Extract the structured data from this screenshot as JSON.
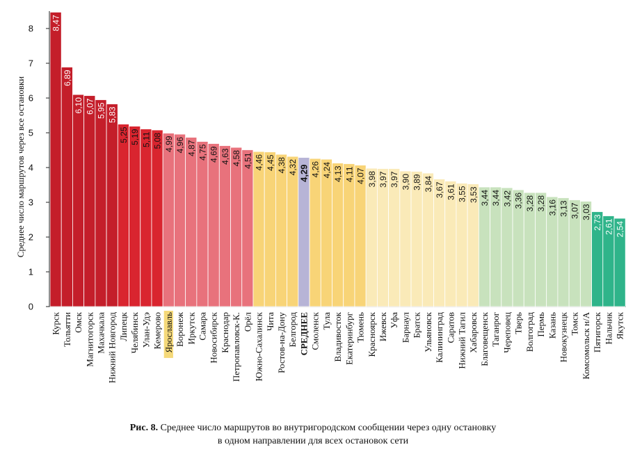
{
  "caption": {
    "label": "Рис.  8.",
    "line1": "Среднее число маршрутов во внутригородском сообщении через одну остановку",
    "line2": "в одном направлении для всех остановок сети"
  },
  "chart_data": {
    "type": "bar",
    "title": "",
    "xlabel": "",
    "ylabel": "Среднее число маршрутов через все остановки",
    "ylim": [
      0,
      8.5
    ],
    "yticks": [
      0,
      1,
      2,
      3,
      4,
      5,
      6,
      7,
      8
    ],
    "grid": false,
    "legend": "none",
    "categories": [
      "Курск",
      "Тольятти",
      "Омск",
      "Магнитогорск",
      "Махачкала",
      "Нижний Новгород",
      "Липецк",
      "Челябинск",
      "Улан-Удэ",
      "Кемерово",
      "Ярославль",
      "Воронеж",
      "Иркутск",
      "Самара",
      "Новосибирск",
      "Краснодар",
      "Петропавловск-К.",
      "Орёл",
      "Южно-Сахалинск",
      "Чита",
      "Ростов-на-Дону",
      "Белгород",
      "СРЕДНЕЕ",
      "Смоленск",
      "Тула",
      "Владивосток",
      "Екатеринбург",
      "Тюмень",
      "Красноярск",
      "Ижевск",
      "Уфа",
      "Барнаул",
      "Братск",
      "Ульяновск",
      "Калининград",
      "Саратов",
      "Нижний Тагил",
      "Хабаровск",
      "Благовещенск",
      "Таганрог",
      "Череповец",
      "Тверь",
      "Волгоград",
      "Пермь",
      "Казань",
      "Новокузнецк",
      "Томск",
      "Комсомольск н/А",
      "Пятигорск",
      "Нальчик",
      "Якутск"
    ],
    "values": [
      8.47,
      6.89,
      6.1,
      6.07,
      5.95,
      5.83,
      5.25,
      5.19,
      5.11,
      5.08,
      4.99,
      4.96,
      4.87,
      4.75,
      4.69,
      4.63,
      4.58,
      4.51,
      4.46,
      4.45,
      4.38,
      4.32,
      4.29,
      4.26,
      4.24,
      4.13,
      4.11,
      4.07,
      3.98,
      3.97,
      3.97,
      3.9,
      3.89,
      3.84,
      3.67,
      3.61,
      3.55,
      3.53,
      3.44,
      3.44,
      3.42,
      3.36,
      3.28,
      3.28,
      3.16,
      3.13,
      3.07,
      3.03,
      2.73,
      2.61,
      2.54
    ],
    "value_labels": [
      "8,47",
      "6,89",
      "6,10",
      "6,07",
      "5,95",
      "5,83",
      "5,25",
      "5,19",
      "5,11",
      "5,08",
      "4,99",
      "4,96",
      "4,87",
      "4,75",
      "4,69",
      "4,63",
      "4,58",
      "4,51",
      "4,46",
      "4,45",
      "4,38",
      "4,32",
      "4,29",
      "4,26",
      "4,24",
      "4,13",
      "4,11",
      "4,07",
      "3,98",
      "3,97",
      "3,97",
      "3,90",
      "3,89",
      "3,84",
      "3,67",
      "3,61",
      "3,55",
      "3,53",
      "3,44",
      "3,44",
      "3,42",
      "3,36",
      "3,28",
      "3,28",
      "3,16",
      "3,13",
      "3,07",
      "3,03",
      "2,73",
      "2,61",
      "2,54"
    ],
    "colors": [
      "#c41e2a",
      "#c41e2a",
      "#c41e2a",
      "#c41e2a",
      "#c41e2a",
      "#c41e2a",
      "#d9252f",
      "#d9252f",
      "#d9252f",
      "#d9252f",
      "#e8727c",
      "#e8727c",
      "#e8727c",
      "#e8727c",
      "#e8727c",
      "#e8727c",
      "#e8727c",
      "#e8727c",
      "#f8d477",
      "#f8d477",
      "#f8d477",
      "#f8d477",
      "#b7b4d6",
      "#f8d477",
      "#f8d477",
      "#f8d477",
      "#f8d477",
      "#f8d477",
      "#faeab8",
      "#faeab8",
      "#faeab8",
      "#faeab8",
      "#faeab8",
      "#faeab8",
      "#faeab8",
      "#faeab8",
      "#faeab8",
      "#faeab8",
      "#c8e2bd",
      "#c8e2bd",
      "#c8e2bd",
      "#c8e2bd",
      "#c8e2bd",
      "#c8e2bd",
      "#c8e2bd",
      "#c8e2bd",
      "#c8e2bd",
      "#c8e2bd",
      "#2fb48a",
      "#2fb48a",
      "#2fb48a"
    ],
    "label_colors": [
      "#ffffff",
      "#ffffff",
      "#ffffff",
      "#ffffff",
      "#ffffff",
      "#ffffff",
      "#111111",
      "#111111",
      "#111111",
      "#111111",
      "#111111",
      "#111111",
      "#111111",
      "#111111",
      "#111111",
      "#111111",
      "#111111",
      "#111111",
      "#111111",
      "#111111",
      "#111111",
      "#111111",
      "#111111",
      "#111111",
      "#111111",
      "#111111",
      "#111111",
      "#111111",
      "#111111",
      "#111111",
      "#111111",
      "#111111",
      "#111111",
      "#111111",
      "#111111",
      "#111111",
      "#111111",
      "#111111",
      "#111111",
      "#111111",
      "#111111",
      "#111111",
      "#111111",
      "#111111",
      "#111111",
      "#111111",
      "#111111",
      "#111111",
      "#ffffff",
      "#ffffff",
      "#ffffff"
    ],
    "highlighted_categories": [
      "Ярославль"
    ],
    "highlight_color": "#f5d97a",
    "bold_categories": [
      "СРЕДНЕЕ"
    ]
  }
}
